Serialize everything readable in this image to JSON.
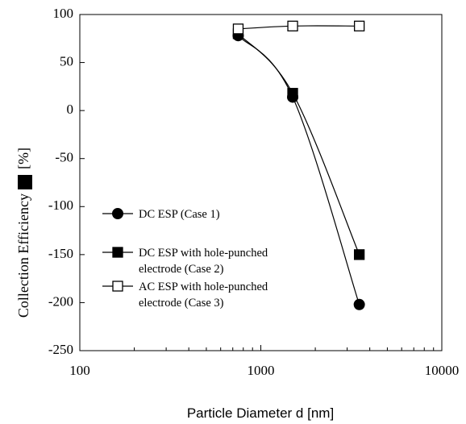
{
  "chart_data": {
    "type": "line",
    "xlabel": "Particle Diameter d [nm]",
    "ylabel": "Collection Efficiency",
    "ylabel_unit": "[%]",
    "xscale": "log",
    "xlim": [
      100,
      10000
    ],
    "ylim": [
      -250,
      100
    ],
    "x_ticks": [
      100,
      1000,
      10000
    ],
    "x_tick_labels": [
      "100",
      "1000",
      "10000"
    ],
    "y_ticks": [
      100,
      50,
      0,
      -50,
      -100,
      -150,
      -200,
      -250
    ],
    "y_tick_labels": [
      "100",
      "50",
      "0",
      "-50",
      "-100",
      "-150",
      "-200",
      "-250"
    ],
    "grid": false,
    "legend_position": "lower-left",
    "series": [
      {
        "name": "DC ESP (Case 1)",
        "marker": "filled-circle",
        "x": [
          750,
          1500,
          3500
        ],
        "y": [
          78,
          14,
          -202
        ]
      },
      {
        "name": "DC ESP with hole-punched electrode (Case 2)",
        "name_lines": [
          "DC ESP with hole-punched",
          "electrode (Case 2)"
        ],
        "marker": "filled-square",
        "x": [
          750,
          1500,
          3500
        ],
        "y": [
          80,
          18,
          -150
        ]
      },
      {
        "name": "AC ESP with hole-punched electrode (Case 3)",
        "name_lines": [
          "AC ESP with hole-punched",
          "electrode (Case 3)"
        ],
        "marker": "open-square",
        "x": [
          750,
          1500,
          3500
        ],
        "y": [
          85,
          88,
          88
        ]
      }
    ]
  }
}
